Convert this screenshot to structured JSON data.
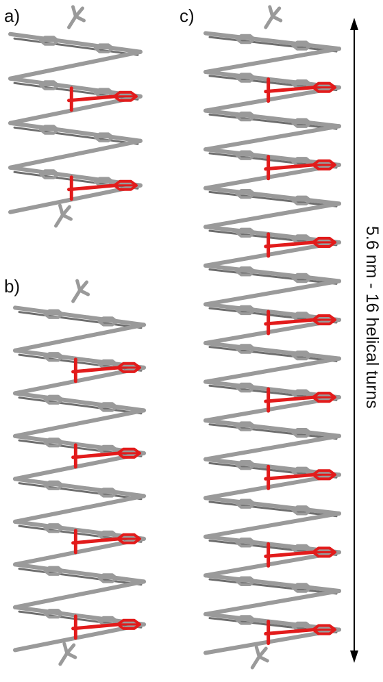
{
  "panels": [
    {
      "label": "a)",
      "repeat_units": 2
    },
    {
      "label": "b)",
      "repeat_units": 4
    },
    {
      "label": "c)",
      "repeat_units": 8
    }
  ],
  "measure": {
    "text": "5.6 nm - 16 helical turns"
  },
  "colors": {
    "backbone": "#9a9a9a",
    "backbone_dark": "#6e6e6e",
    "highlight": "#e21b1b",
    "arrow": "#000000"
  }
}
